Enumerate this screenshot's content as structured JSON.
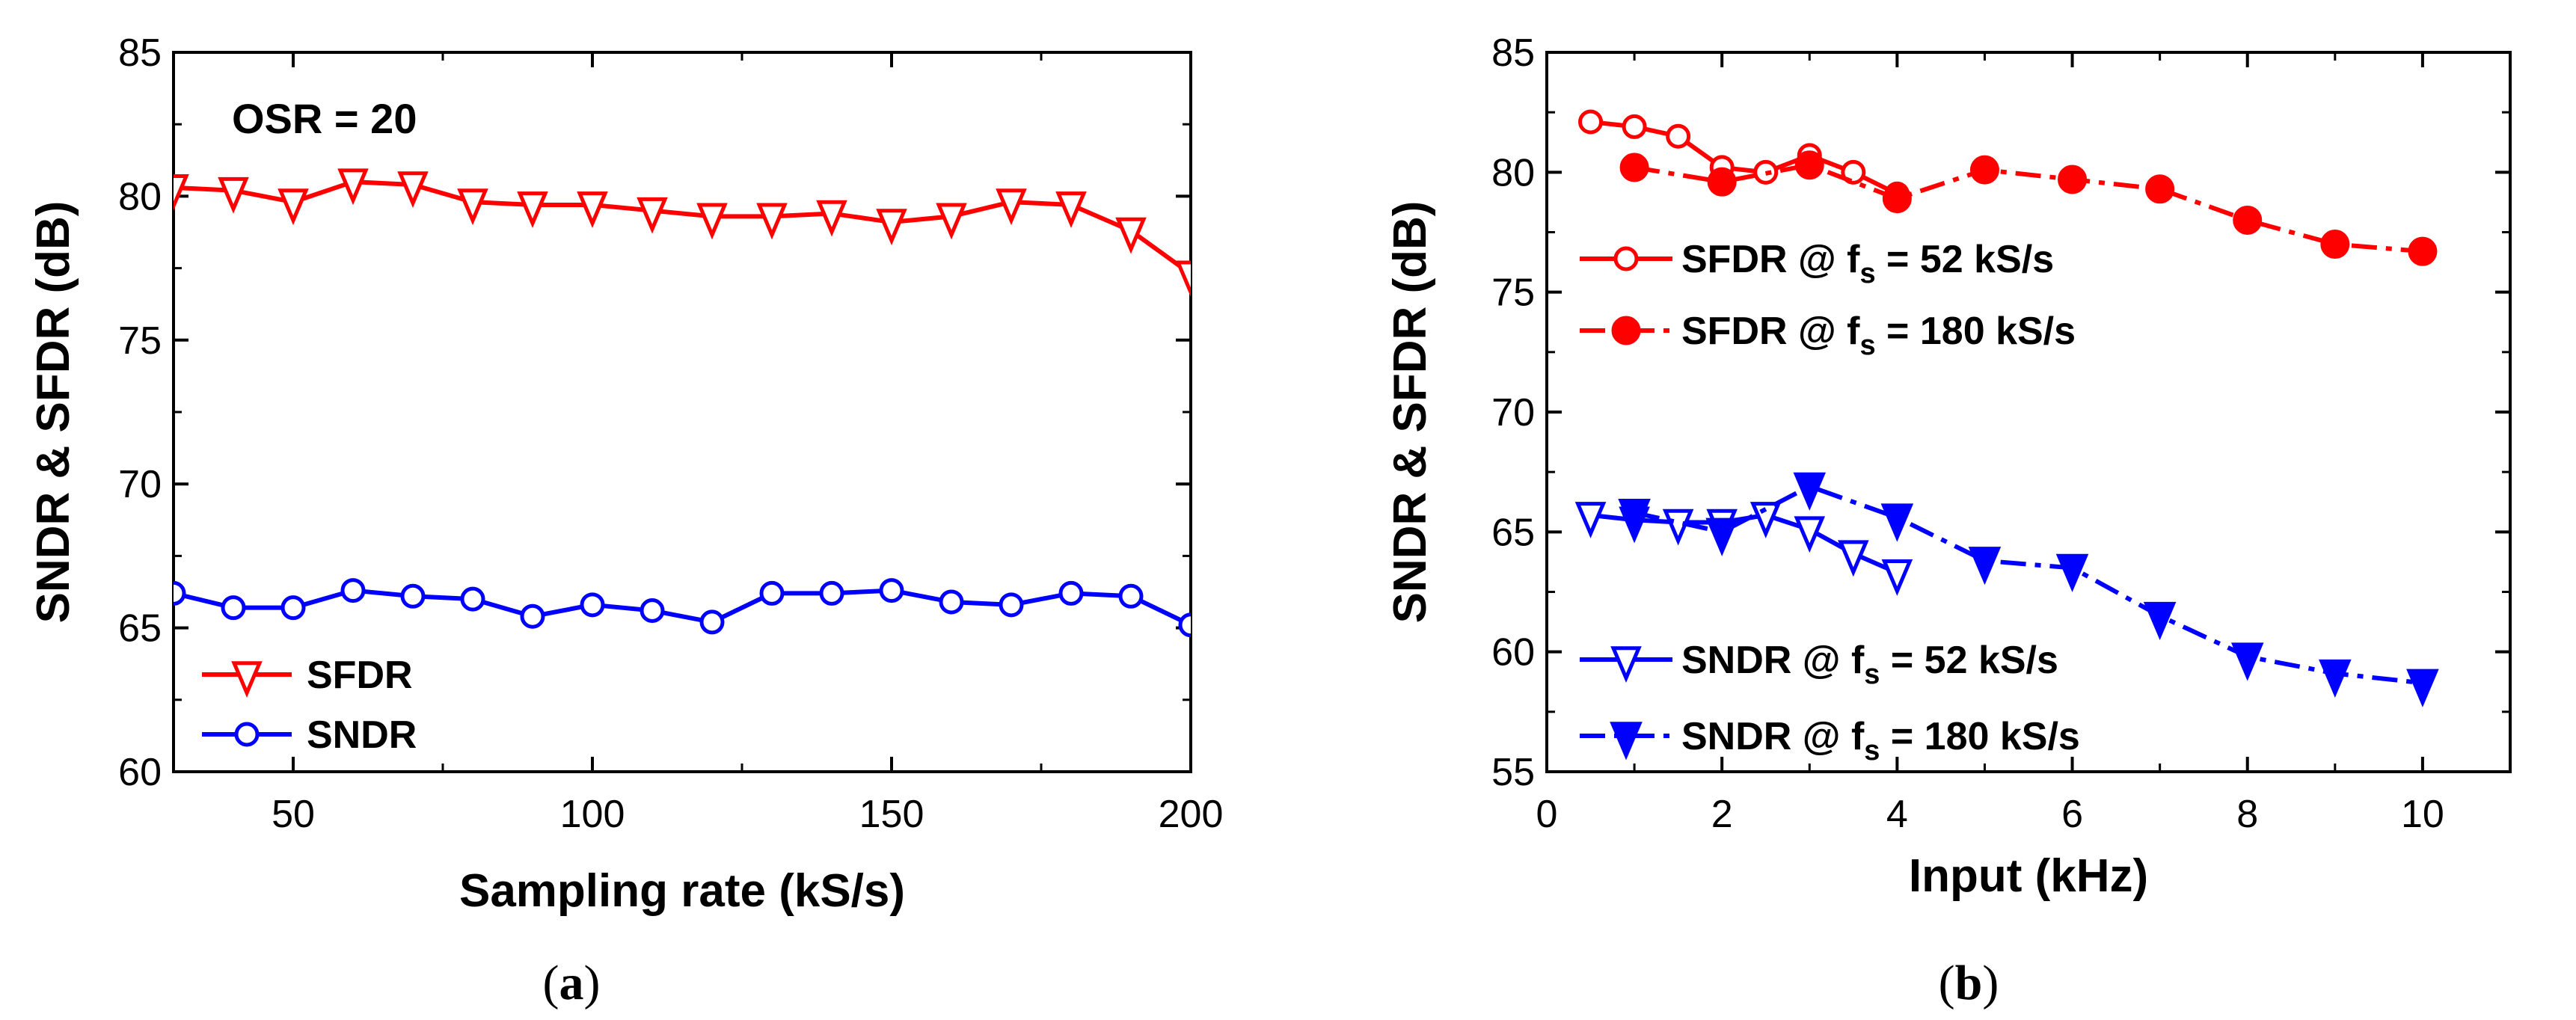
{
  "chart_data": [
    {
      "type": "line",
      "panel_caption": "(a)",
      "caption_letter": "a",
      "xlabel": "Sampling rate (kS/s)",
      "ylabel": "SNDR & SFDR (dB)",
      "xlim": [
        30,
        200
      ],
      "ylim": [
        60,
        85
      ],
      "xticks": [
        50,
        100,
        150,
        200
      ],
      "yticks": [
        60,
        65,
        70,
        75,
        80,
        85
      ],
      "annotation": "OSR = 20",
      "legend_position": "bottom-left",
      "series": [
        {
          "name": "SFDR",
          "label": "SFDR",
          "color": "#ff0000",
          "marker": "triangle-down-open",
          "dash": "solid",
          "x": [
            30,
            40,
            50,
            60,
            70,
            80,
            90,
            100,
            110,
            120,
            130,
            140,
            150,
            160,
            170,
            180,
            190,
            200
          ],
          "y": [
            80.3,
            80.2,
            79.8,
            80.5,
            80.4,
            79.8,
            79.7,
            79.7,
            79.5,
            79.3,
            79.3,
            79.4,
            79.1,
            79.3,
            79.8,
            79.7,
            78.8,
            77.3
          ]
        },
        {
          "name": "SNDR",
          "label": "SNDR",
          "color": "#0000ff",
          "marker": "circle-open",
          "dash": "solid",
          "x": [
            30,
            40,
            50,
            60,
            70,
            80,
            90,
            100,
            110,
            120,
            130,
            140,
            150,
            160,
            170,
            180,
            190,
            200
          ],
          "y": [
            66.2,
            65.7,
            65.7,
            66.3,
            66.1,
            66.0,
            65.4,
            65.8,
            65.6,
            65.2,
            66.2,
            66.2,
            66.3,
            65.9,
            65.8,
            66.2,
            66.1,
            65.1
          ]
        }
      ]
    },
    {
      "type": "line",
      "panel_caption": "(b)",
      "caption_letter": "b",
      "xlabel": "Input (kHz)",
      "ylabel": "SNDR & SFDR (dB)",
      "xlim": [
        0,
        11
      ],
      "ylim": [
        55,
        85
      ],
      "xticks": [
        0,
        2,
        4,
        6,
        8,
        10
      ],
      "yticks": [
        55,
        60,
        65,
        70,
        75,
        80,
        85
      ],
      "series": [
        {
          "name": "SFDR @ fs = 52 kS/s",
          "label_prefix": "SFDR @ f",
          "label_sub": "s",
          "label_suffix": " = 52 kS/s",
          "color": "#ff0000",
          "marker": "circle-open",
          "dash": "solid",
          "x": [
            0.5,
            1.0,
            1.5,
            2.0,
            2.5,
            3.0,
            3.5,
            4.0
          ],
          "y": [
            82.1,
            81.9,
            81.5,
            80.2,
            80.0,
            80.7,
            80.0,
            79.1
          ]
        },
        {
          "name": "SFDR @ fs = 180 kS/s",
          "label_prefix": "SFDR @ f",
          "label_sub": "s",
          "label_suffix": " = 180 kS/s",
          "color": "#ff0000",
          "marker": "circle-filled",
          "dash": "dashdot",
          "x": [
            1,
            2,
            3,
            4,
            5,
            6,
            7,
            8,
            9,
            10
          ],
          "y": [
            80.2,
            79.6,
            80.3,
            78.9,
            80.1,
            79.7,
            79.3,
            78.0,
            77.0,
            76.7
          ]
        },
        {
          "name": "SNDR @ fs = 52 kS/s",
          "label_prefix": "SNDR @ f",
          "label_sub": "s",
          "label_suffix": " = 52 kS/s",
          "color": "#0000ff",
          "marker": "triangle-down-open",
          "dash": "solid",
          "x": [
            0.5,
            1.0,
            1.5,
            2.0,
            2.5,
            3.0,
            3.5,
            4.0
          ],
          "y": [
            65.7,
            65.5,
            65.4,
            65.4,
            65.7,
            65.1,
            64.1,
            63.3
          ]
        },
        {
          "name": "SNDR @ fs = 180 kS/s",
          "label_prefix": "SNDR @ f",
          "label_sub": "s",
          "label_suffix": " = 180 kS/s",
          "color": "#0000ff",
          "marker": "triangle-down-filled",
          "dash": "dashdot",
          "x": [
            1,
            2,
            3,
            4,
            5,
            6,
            7,
            8,
            9,
            10
          ],
          "y": [
            65.8,
            65.0,
            66.9,
            65.6,
            63.8,
            63.5,
            61.5,
            59.8,
            59.1,
            58.7
          ]
        }
      ]
    }
  ]
}
